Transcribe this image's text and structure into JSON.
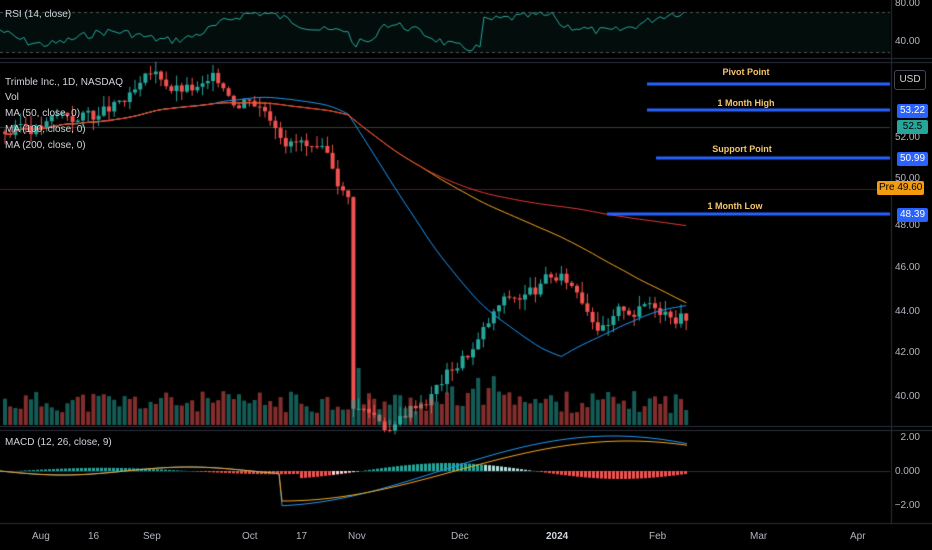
{
  "rsi_panel": {
    "legend": "RSI (14, close)",
    "ticks": [
      "80.00",
      "40.00"
    ]
  },
  "main_panel": {
    "legend": {
      "symbol": "Trimble Inc., 1D, NASDAQ",
      "volume": "Vol",
      "ma50": "MA (50, close, 0)",
      "ma100": "MA (100, close, 0)",
      "ma200": "MA (200, close, 0)"
    },
    "currency_button": "USD",
    "price_ticks": [
      "52.00",
      "50.00",
      "48.00",
      "46.00",
      "44.00",
      "42.00",
      "40.00"
    ],
    "tags": {
      "one_month_high": "53.22",
      "last_price": "52.5",
      "support_point": "50.99",
      "pre_label": "Pre",
      "pre_price": "49.60",
      "one_month_low": "48.39"
    },
    "levels": {
      "pivot": "Pivot Point",
      "one_month_high": "1 Month High",
      "support": "Support Point",
      "one_month_low": "1 Month Low"
    }
  },
  "macd_panel": {
    "legend": "MACD (12, 26, close, 9)",
    "ticks": [
      "2.00",
      "0.000",
      "−2.00"
    ]
  },
  "time_axis": [
    "Aug",
    "16",
    "Sep",
    "Oct",
    "17",
    "Nov",
    "Dec",
    "2024",
    "Feb",
    "Mar",
    "Apr"
  ],
  "colors": {
    "up": "#26a69a",
    "down": "#ef5350",
    "ma50": "#2196f3",
    "ma100": "#f5a623",
    "ma200": "#e53935",
    "level_line": "#2962ff",
    "rsi_line": "#26a69a"
  }
}
